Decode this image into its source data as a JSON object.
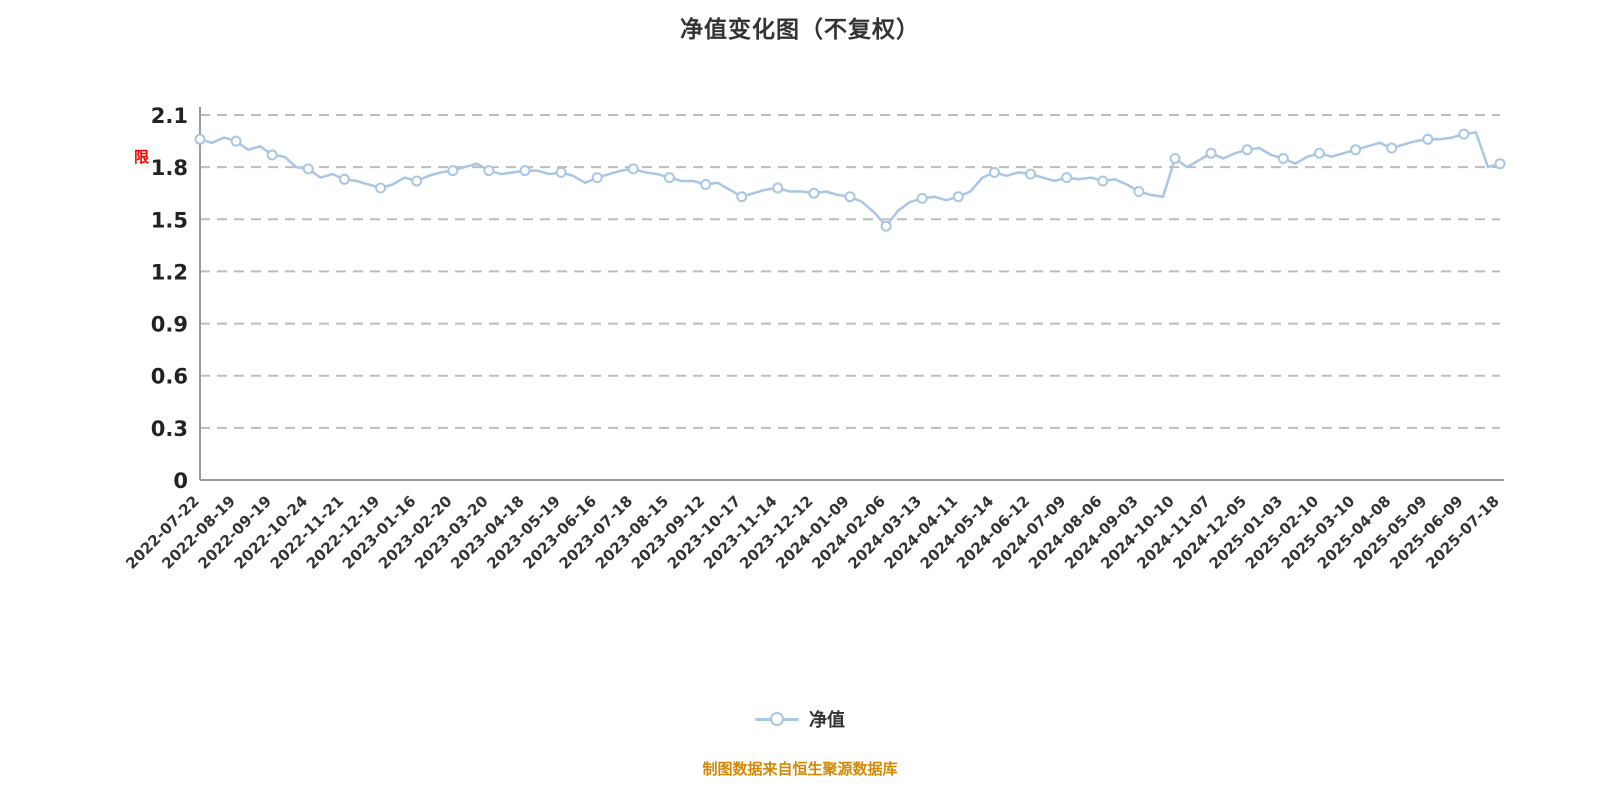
{
  "page": {
    "title": "净值变化图（不复权）",
    "annotation": "限",
    "footer": "制图数据来自恒生聚源数据库"
  },
  "legend": {
    "label": "净值"
  },
  "chart_data": {
    "type": "line",
    "title": "净值变化图（不复权）",
    "series_name": "净值",
    "legend_position": "bottom",
    "grid": "dashed-horizontal",
    "ylim": [
      0,
      2.1
    ],
    "y_ticks": [
      0,
      0.3,
      0.6,
      0.9,
      1.2,
      1.5,
      1.8,
      2.1
    ],
    "x_labels": [
      "2022-07-22",
      "2022-08-19",
      "2022-09-19",
      "2022-10-24",
      "2022-11-21",
      "2022-12-19",
      "2023-01-16",
      "2023-02-20",
      "2023-03-20",
      "2023-04-18",
      "2023-05-19",
      "2023-06-16",
      "2023-07-18",
      "2023-08-15",
      "2023-09-12",
      "2023-10-17",
      "2023-11-14",
      "2023-12-12",
      "2024-01-09",
      "2024-02-06",
      "2024-03-13",
      "2024-04-11",
      "2024-05-14",
      "2024-06-12",
      "2024-07-09",
      "2024-08-06",
      "2024-09-03",
      "2024-10-10",
      "2024-11-07",
      "2024-12-05",
      "2025-01-03",
      "2025-02-10",
      "2025-03-10",
      "2025-04-08",
      "2025-05-09",
      "2025-06-09",
      "2025-07-18"
    ],
    "values": [
      1.96,
      1.94,
      1.97,
      1.95,
      1.9,
      1.92,
      1.87,
      1.86,
      1.8,
      1.79,
      1.74,
      1.76,
      1.73,
      1.72,
      1.7,
      1.68,
      1.7,
      1.74,
      1.72,
      1.75,
      1.77,
      1.78,
      1.8,
      1.82,
      1.78,
      1.76,
      1.77,
      1.78,
      1.78,
      1.76,
      1.77,
      1.75,
      1.71,
      1.74,
      1.76,
      1.78,
      1.79,
      1.77,
      1.76,
      1.74,
      1.72,
      1.72,
      1.7,
      1.71,
      1.67,
      1.63,
      1.65,
      1.67,
      1.68,
      1.66,
      1.66,
      1.65,
      1.66,
      1.64,
      1.63,
      1.6,
      1.54,
      1.46,
      1.55,
      1.6,
      1.62,
      1.63,
      1.61,
      1.63,
      1.66,
      1.74,
      1.77,
      1.75,
      1.77,
      1.76,
      1.74,
      1.72,
      1.74,
      1.73,
      1.74,
      1.72,
      1.73,
      1.7,
      1.66,
      1.64,
      1.63,
      1.85,
      1.8,
      1.84,
      1.88,
      1.85,
      1.88,
      1.9,
      1.91,
      1.87,
      1.85,
      1.82,
      1.86,
      1.88,
      1.86,
      1.88,
      1.9,
      1.92,
      1.94,
      1.91,
      1.93,
      1.95,
      1.96,
      1.96,
      1.97,
      1.99,
      2.0,
      1.8,
      1.82
    ],
    "colors": {
      "line": "#a9c6e4",
      "marker_fill": "#ffffff",
      "grid": "#bdbdbd",
      "axis": "#999999",
      "tick_text": "#222222",
      "annotation": "#ff0000",
      "footer": "#d48806"
    }
  }
}
